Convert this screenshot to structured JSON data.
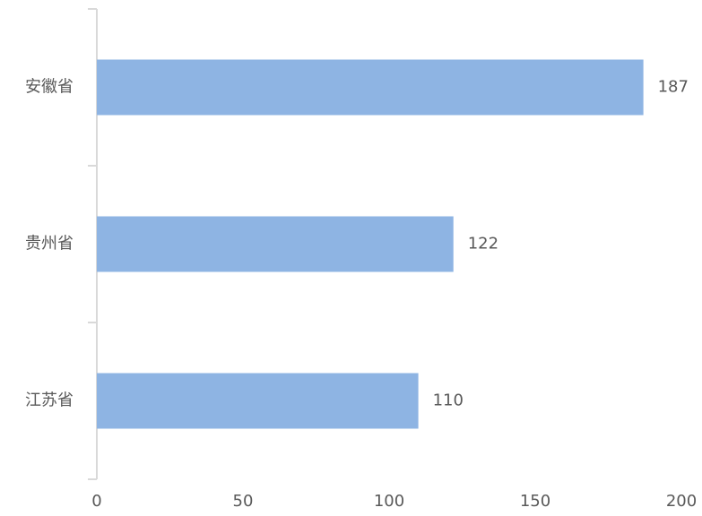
{
  "chart_data": {
    "type": "bar",
    "orientation": "horizontal",
    "categories": [
      "安徽省",
      "贵州省",
      "江苏省"
    ],
    "values": [
      187,
      122,
      110
    ],
    "color": "#8eb4e3",
    "xlim": [
      0,
      200
    ],
    "xticks": [
      0,
      50,
      100,
      150,
      200
    ],
    "grid": false
  }
}
